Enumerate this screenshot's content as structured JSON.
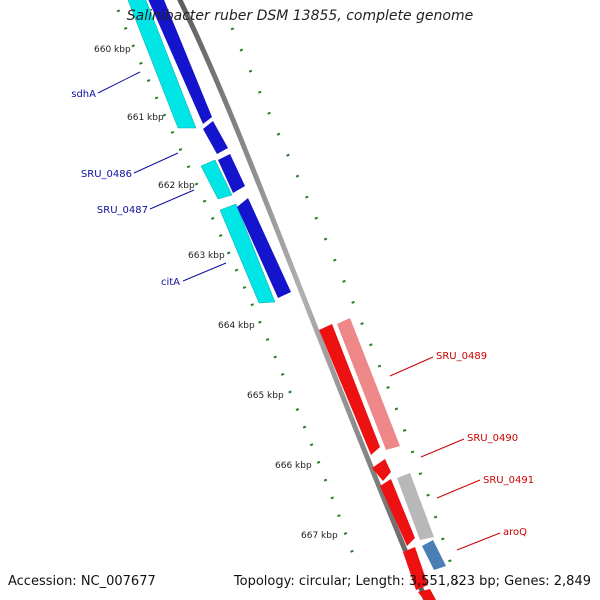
{
  "title": "Salinibacter ruber DSM 13855, complete genome",
  "footer": {
    "accession": "Accession: NC_007677",
    "summary": "Topology: circular; Length: 3,551,823 bp; Genes: 2,849"
  },
  "colors": {
    "backbone": "#8a8a8a",
    "tick": "#2a7d2a",
    "label_left": "#1010a0",
    "label_right": "#cc0000",
    "cds_forward": "#1414cc",
    "rna_forward": "#00e5e5",
    "cds_reverse": "#ee1111",
    "rna_reverse": "#ee8888",
    "gray_feature": "#b8b8b8",
    "steel_feature": "#4a7fb5"
  },
  "kbp_ticks": [
    "660 kbp",
    "661 kbp",
    "662 kbp",
    "663 kbp",
    "664 kbp",
    "665 kbp",
    "666 kbp",
    "667 kbp"
  ],
  "gene_labels_left": [
    "sdhA",
    "SRU_0486",
    "SRU_0487",
    "citA"
  ],
  "gene_labels_right": [
    "SRU_0489",
    "SRU_0490",
    "SRU_0491",
    "aroQ"
  ]
}
